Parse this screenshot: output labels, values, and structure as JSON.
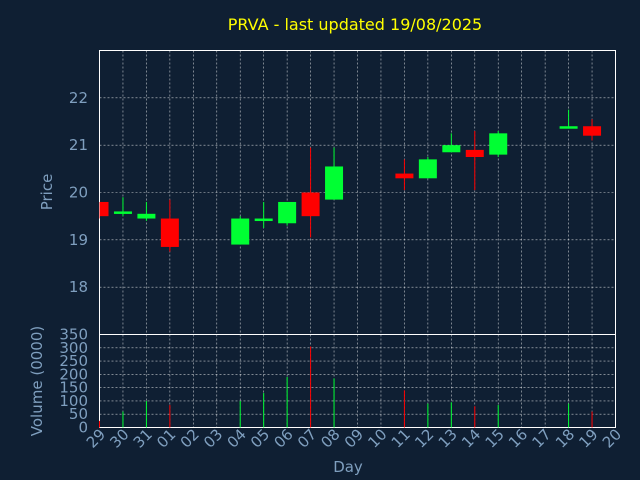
{
  "title": "PRVA - last updated 19/08/2025",
  "chart_data": [
    {
      "type": "candlestick",
      "ylabel": "Price",
      "ylim": [
        17.0,
        23.0
      ],
      "yticks": [
        18,
        19,
        20,
        21,
        22
      ],
      "grid": true,
      "colors": {
        "up": "#00ff33",
        "down": "#ff0000"
      },
      "days": [
        "29",
        "30",
        "31",
        "01",
        "02",
        "03",
        "04",
        "05",
        "06",
        "07",
        "08",
        "09",
        "10",
        "11",
        "12",
        "13",
        "14",
        "15",
        "16",
        "17",
        "18",
        "19",
        "20"
      ],
      "candles": [
        {
          "day": "29",
          "open": 19.8,
          "high": 19.8,
          "low": 19.45,
          "close": 19.5
        },
        {
          "day": "30",
          "open": 19.55,
          "high": 19.9,
          "low": 19.5,
          "close": 19.6
        },
        {
          "day": "31",
          "open": 19.45,
          "high": 19.8,
          "low": 19.4,
          "close": 19.55
        },
        {
          "day": "01",
          "open": 19.45,
          "high": 19.85,
          "low": 18.75,
          "close": 18.85
        },
        {
          "day": "04",
          "open": 18.9,
          "high": 19.5,
          "low": 18.9,
          "close": 19.45
        },
        {
          "day": "05",
          "open": 19.4,
          "high": 19.8,
          "low": 19.25,
          "close": 19.45
        },
        {
          "day": "06",
          "open": 19.35,
          "high": 19.8,
          "low": 19.3,
          "close": 19.8
        },
        {
          "day": "07",
          "open": 20.0,
          "high": 20.95,
          "low": 19.05,
          "close": 19.5
        },
        {
          "day": "08",
          "open": 19.85,
          "high": 20.95,
          "low": 19.85,
          "close": 20.55
        },
        {
          "day": "11",
          "open": 20.4,
          "high": 20.7,
          "low": 20.05,
          "close": 20.3
        },
        {
          "day": "12",
          "open": 20.3,
          "high": 20.75,
          "low": 20.3,
          "close": 20.7
        },
        {
          "day": "13",
          "open": 20.85,
          "high": 21.25,
          "low": 20.85,
          "close": 21.0
        },
        {
          "day": "14",
          "open": 20.9,
          "high": 21.3,
          "low": 20.05,
          "close": 20.75
        },
        {
          "day": "15",
          "open": 20.8,
          "high": 21.3,
          "low": 20.75,
          "close": 21.25
        },
        {
          "day": "18",
          "open": 21.35,
          "high": 21.75,
          "low": 21.35,
          "close": 21.4
        },
        {
          "day": "19",
          "open": 21.4,
          "high": 21.55,
          "low": 21.1,
          "close": 21.2
        }
      ]
    },
    {
      "type": "bar",
      "xlabel": "Day",
      "ylabel": "Volume (0000)",
      "ylim": [
        0,
        350
      ],
      "yticks": [
        0,
        50,
        100,
        150,
        200,
        250,
        300,
        350
      ],
      "grid": true,
      "values": [
        {
          "day": "29",
          "volume": 25,
          "direction": "down"
        },
        {
          "day": "30",
          "volume": 60,
          "direction": "up"
        },
        {
          "day": "31",
          "volume": 100,
          "direction": "up"
        },
        {
          "day": "01",
          "volume": 85,
          "direction": "down"
        },
        {
          "day": "04",
          "volume": 100,
          "direction": "up"
        },
        {
          "day": "05",
          "volume": 130,
          "direction": "up"
        },
        {
          "day": "06",
          "volume": 190,
          "direction": "up"
        },
        {
          "day": "07",
          "volume": 305,
          "direction": "down"
        },
        {
          "day": "08",
          "volume": 185,
          "direction": "up"
        },
        {
          "day": "11",
          "volume": 140,
          "direction": "down"
        },
        {
          "day": "12",
          "volume": 90,
          "direction": "up"
        },
        {
          "day": "13",
          "volume": 95,
          "direction": "up"
        },
        {
          "day": "14",
          "volume": 80,
          "direction": "down"
        },
        {
          "day": "15",
          "volume": 85,
          "direction": "up"
        },
        {
          "day": "18",
          "volume": 90,
          "direction": "up"
        },
        {
          "day": "19",
          "volume": 60,
          "direction": "down"
        }
      ]
    }
  ]
}
